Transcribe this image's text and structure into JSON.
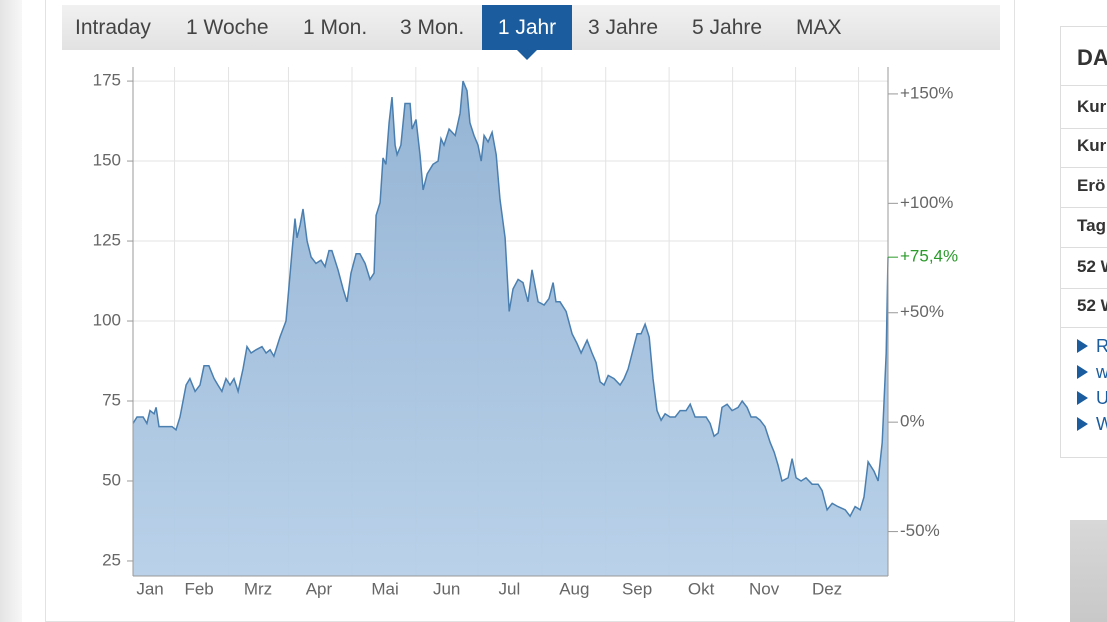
{
  "tabs": {
    "items": [
      "Intraday",
      "1 Woche",
      "1 Mon.",
      "3 Mon.",
      "1 Jahr",
      "3 Jahre",
      "5 Jahre",
      "MAX"
    ],
    "active": 4
  },
  "chart_data": {
    "type": "area",
    "color": "#4a7fb0",
    "x": [
      0,
      1.8,
      4.5,
      6.2,
      7.6,
      9.4,
      10.3,
      11.6,
      14.3,
      17.4,
      19.2,
      21,
      23.7,
      25.4,
      27.7,
      29.9,
      31.7,
      33.9,
      36.2,
      37.9,
      39.7,
      41.5,
      43.3,
      45.1,
      46.9,
      49.1,
      50.9,
      52.7,
      54.9,
      57.6,
      59.4,
      61.2,
      62.9,
      65.6,
      68.3,
      71,
      72.3,
      73.2,
      74.6,
      75.9,
      77.7,
      79.5,
      81.7,
      83.9,
      85.7,
      87.5,
      88.8,
      91.5,
      93.8,
      95.5,
      97.3,
      99.6,
      101.3,
      103.6,
      105.8,
      107.6,
      108.5,
      110.3,
      111.6,
      112.9,
      114.3,
      115.6,
      117,
      117.9,
      119.6,
      121.4,
      123.7,
      124.6,
      126.3,
      128.1,
      129.5,
      131.3,
      133.9,
      136.2,
      137.5,
      138.8,
      141.1,
      143.8,
      146,
      147.3,
      149.1,
      150.4,
      152.2,
      154,
      155.4,
      156.7,
      158.5,
      160.3,
      162.1,
      163.8,
      166.1,
      167.9,
      169.6,
      171.9,
      174.1,
      176.3,
      178.1,
      180.8,
      183.5,
      185.7,
      187.5,
      188.8,
      190.6,
      193.3,
      196,
      198.2,
      200,
      202.7,
      204.9,
      206.7,
      208.5,
      210.3,
      212.1,
      214.7,
      217.4,
      219.2,
      221,
      222.8,
      225,
      226.8,
      228.6,
      230.4,
      232.1,
      233.9,
      235.7,
      237.5,
      239.7,
      242,
      244.2,
      246.9,
      248.7,
      250.9,
      253.1,
      255.8,
      257.6,
      259.4,
      261.2,
      262.9,
      265.2,
      267.4,
      270.1,
      271.9,
      274.1,
      275.9,
      278.1,
      279.9,
      282.1,
      284.4,
      286.2,
      287.9,
      289.7,
      292.4,
      294.2,
      296,
      298.2,
      300.4,
      303.1,
      305.8,
      307.6,
      309.8,
      312.1,
      314.7,
      317.9,
      320.1,
      322.3,
      324.6,
      326.3,
      328.1,
      330.8,
      332.6,
      334.4,
      336.2,
      337
    ],
    "values": [
      68,
      70,
      70,
      68,
      72,
      71,
      73,
      67,
      67,
      67,
      66,
      70,
      80,
      82,
      78,
      80,
      86,
      86,
      82,
      80,
      78,
      82,
      80,
      82,
      78,
      85,
      92,
      90,
      91,
      92,
      90,
      91,
      89,
      95,
      100,
      122,
      132,
      126,
      130,
      135,
      125,
      120,
      118,
      119,
      117,
      122,
      122,
      116,
      110,
      106,
      115,
      121,
      121,
      118,
      113,
      115,
      133,
      137,
      151,
      149,
      162,
      170,
      155,
      152,
      155,
      168,
      168,
      160,
      163,
      152,
      141,
      146,
      149,
      150,
      157,
      155,
      160,
      158,
      165,
      175,
      172,
      162,
      158,
      155,
      150,
      158,
      156,
      159,
      152,
      138,
      126,
      103,
      110,
      113,
      112,
      106,
      116,
      106,
      105,
      107,
      112,
      106,
      106,
      103,
      96,
      93,
      90,
      94,
      90,
      87,
      81,
      80,
      83,
      82,
      80,
      82,
      85,
      90,
      96,
      96,
      99,
      95,
      82,
      72,
      69,
      71,
      70,
      70,
      72,
      72,
      74,
      70,
      70,
      70,
      68,
      64,
      65,
      73,
      74,
      72,
      73,
      75,
      73,
      70,
      70,
      69,
      67,
      62,
      59,
      55,
      50,
      51,
      57,
      51,
      50,
      51,
      49,
      49,
      47,
      41,
      43,
      42,
      41,
      39,
      42,
      41,
      45,
      56,
      53,
      50,
      62,
      90,
      120
    ],
    "xlim": [
      0,
      337
    ],
    "xticks": [
      {
        "value": 7.6,
        "label": "Jan"
      },
      {
        "value": 29.5,
        "label": "Feb"
      },
      {
        "value": 55.8,
        "label": "Mrz"
      },
      {
        "value": 83,
        "label": "Apr"
      },
      {
        "value": 112.5,
        "label": "Mai"
      },
      {
        "value": 140,
        "label": "Jun"
      },
      {
        "value": 168,
        "label": "Jul"
      },
      {
        "value": 197,
        "label": "Aug"
      },
      {
        "value": 225,
        "label": "Sep"
      },
      {
        "value": 253.6,
        "label": "Okt"
      },
      {
        "value": 281.7,
        "label": "Nov"
      },
      {
        "value": 309.8,
        "label": "Dez"
      }
    ],
    "ylim": [
      20.3,
      179.4
    ],
    "yticks": [
      25,
      50,
      75,
      100,
      125,
      150,
      175
    ],
    "y2lim": [
      -70.3,
      162.3
    ],
    "y2ticks": [
      {
        "value": 150,
        "label": "+150%"
      },
      {
        "value": 100,
        "label": "+100%"
      },
      {
        "value": 50,
        "label": "+50%"
      },
      {
        "value": 0,
        "label": "0%"
      },
      {
        "value": -50,
        "label": "-50%"
      }
    ],
    "current": {
      "value": 75.4,
      "label": "+75,4%",
      "color": "#2a9a2a"
    },
    "grid": true
  },
  "sidebar": {
    "title": "DA",
    "rows": [
      "Kur",
      "Kur",
      "Erö",
      "Tag",
      "52 W",
      "52 W"
    ],
    "links": [
      "R",
      "w",
      "U",
      "W"
    ]
  }
}
